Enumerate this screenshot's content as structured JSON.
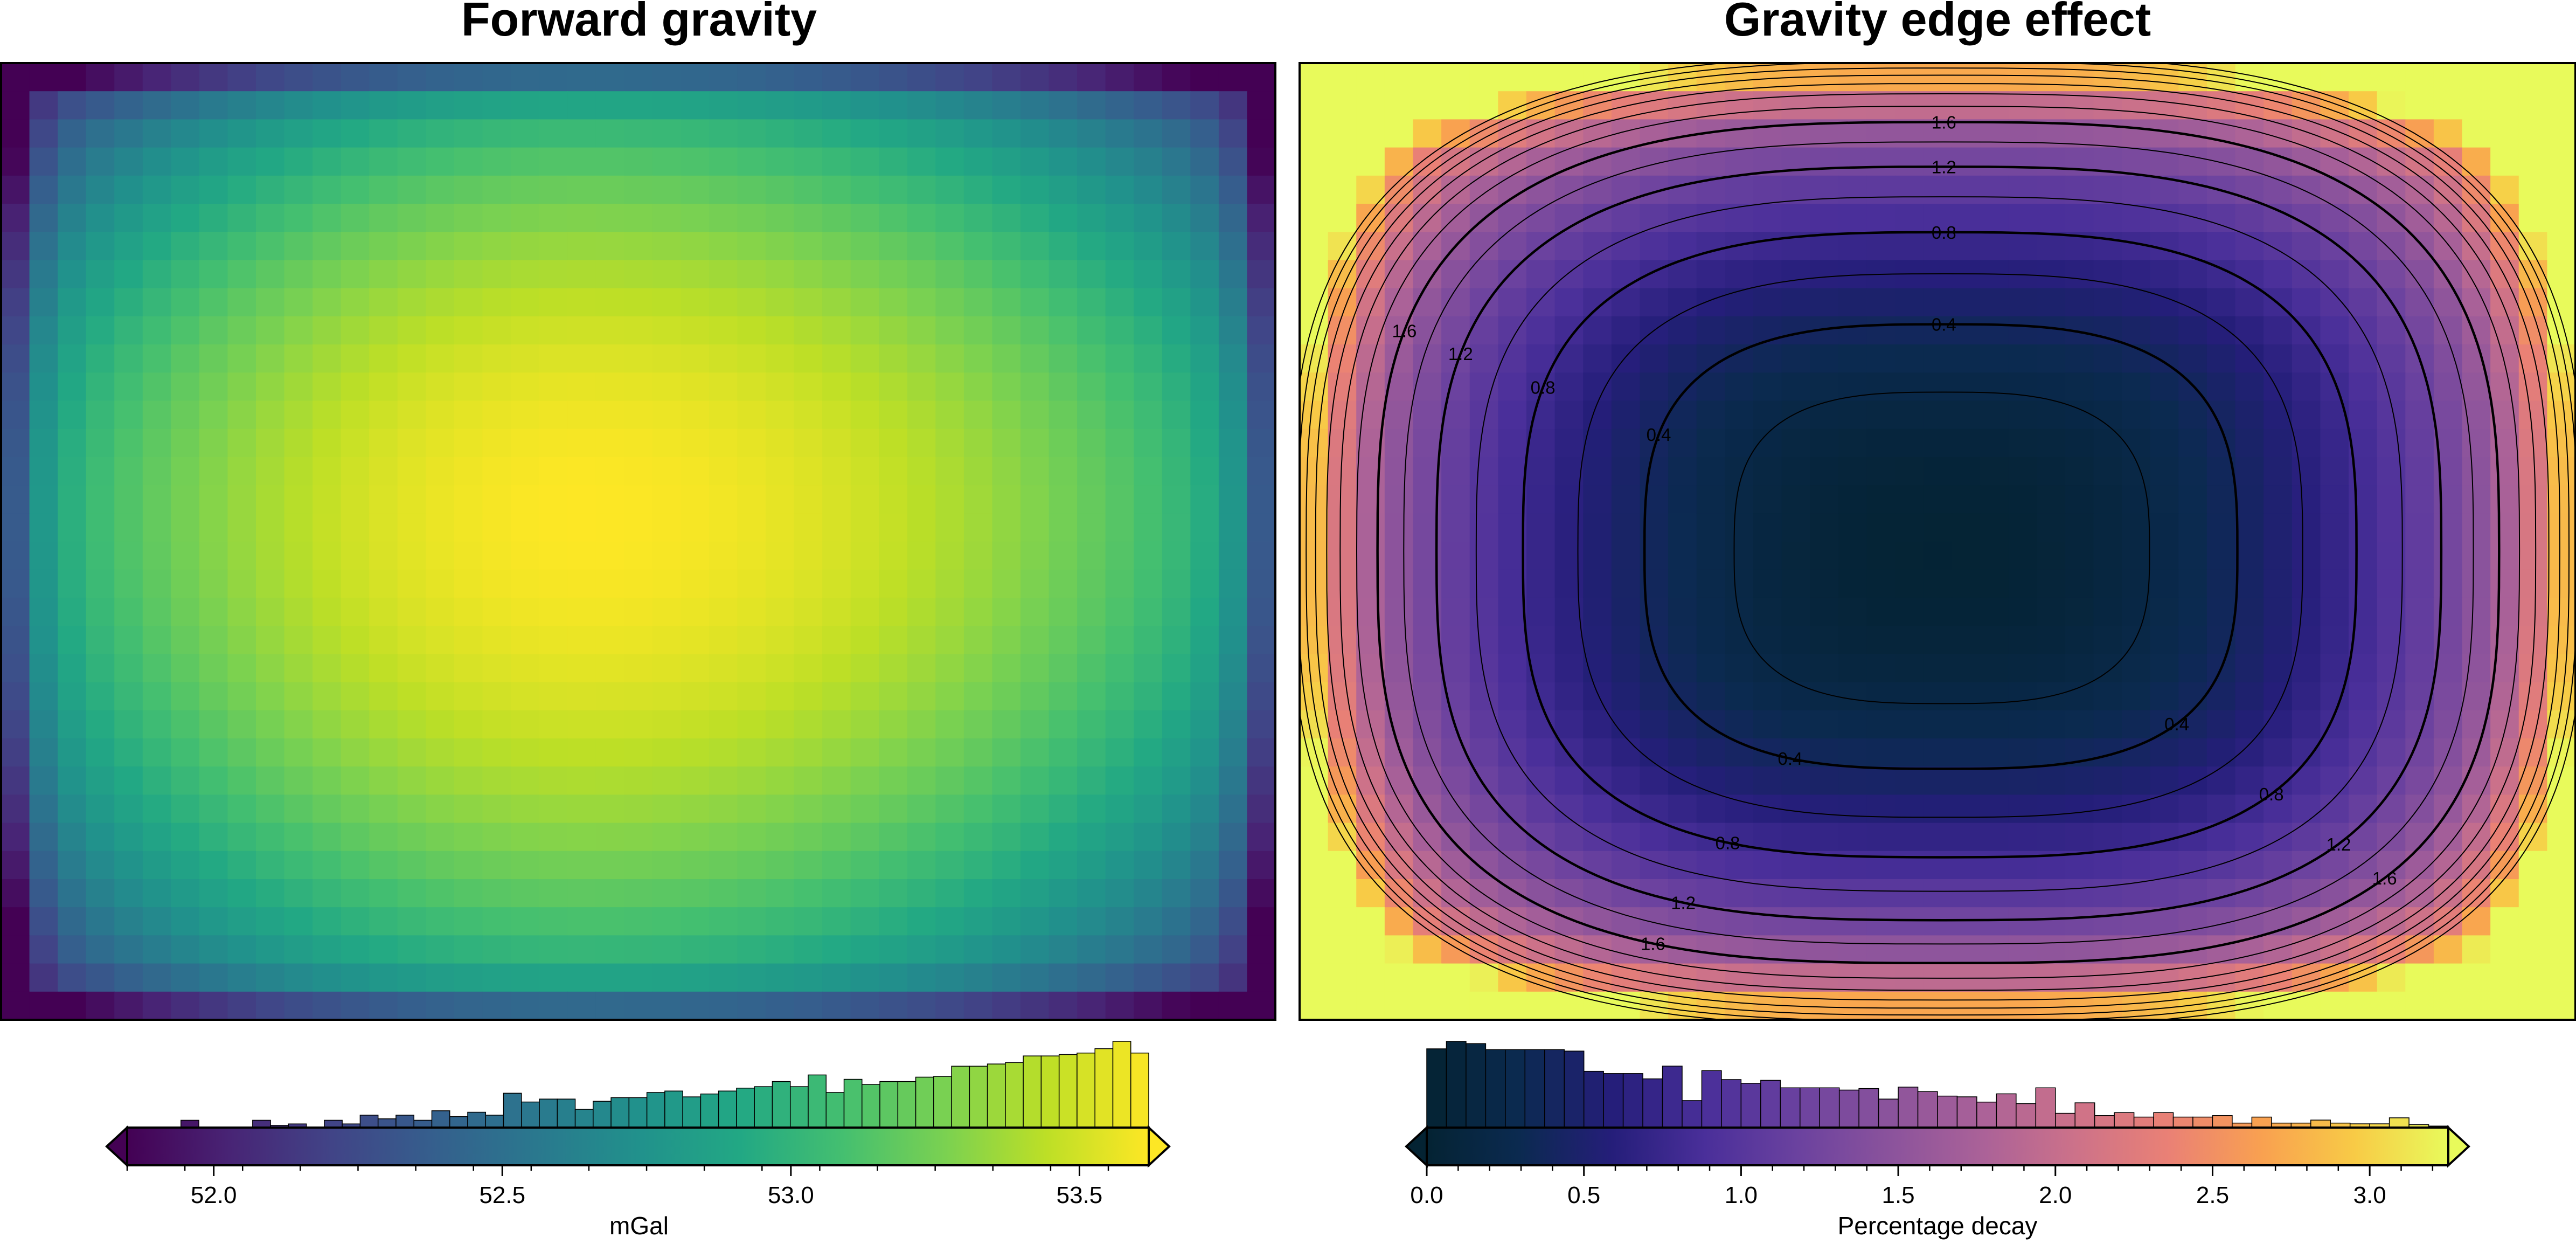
{
  "chart_data": [
    {
      "type": "heatmap",
      "title": "Forward gravity",
      "colormap": "viridis",
      "grid_shape": [
        34,
        45
      ],
      "value_range": [
        51.85,
        53.62
      ],
      "colorbar": {
        "label": "mGal",
        "range": [
          51.85,
          53.62
        ],
        "ticks": [
          52.0,
          52.5,
          53.0,
          53.5
        ],
        "tick_labels": [
          "52.0",
          "52.5",
          "53.0",
          "53.5"
        ],
        "extend": "both"
      },
      "histogram": [
        0,
        0,
        0,
        1,
        0,
        0,
        0,
        1,
        0.3,
        0.5,
        0,
        1,
        0.5,
        1.7,
        1.2,
        1.7,
        1,
        2.3,
        1.5,
        2.1,
        1.7,
        4.7,
        3.5,
        3.9,
        3.9,
        2.5,
        3.6,
        4.1,
        4.1,
        4.8,
        5.0,
        4.2,
        4.6,
        5.0,
        5.4,
        5.6,
        6.3,
        5.6,
        7.2,
        4.8,
        6.6,
        5.9,
        6.3,
        6.3,
        6.9,
        7.0,
        8.4,
        8.4,
        8.7,
        8.9,
        9.8,
        9.8,
        10.0,
        10.2,
        10.8,
        11.8,
        10.2
      ],
      "highest_region": "center-left"
    },
    {
      "type": "heatmap",
      "title": "Gravity edge effect",
      "colormap": "thermal",
      "grid_shape": [
        34,
        45
      ],
      "value_range": [
        0.0,
        3.25
      ],
      "contours": {
        "levels": [
          0.2,
          0.4,
          0.6,
          0.8,
          1.0,
          1.2,
          1.4,
          1.6,
          1.8,
          2.0,
          2.2,
          2.4,
          2.6,
          2.8,
          3.0
        ],
        "labeled_levels": [
          0.4,
          0.8,
          1.2,
          1.6
        ],
        "labels": [
          "0.4",
          "0.8",
          "1.2",
          "1.6"
        ]
      },
      "colorbar": {
        "label": "Percentage decay",
        "range": [
          0.0,
          3.25
        ],
        "ticks": [
          0.0,
          0.5,
          1.0,
          1.5,
          2.0,
          2.5,
          3.0
        ],
        "tick_labels": [
          "0.0",
          "0.5",
          "1.0",
          "1.5",
          "2.0",
          "2.5",
          "3.0"
        ],
        "extend": "both"
      },
      "histogram": [
        10.5,
        11.5,
        11.2,
        10.4,
        10.4,
        10.4,
        10.4,
        10.2,
        7.5,
        7.2,
        7.2,
        6.5,
        8.2,
        3.6,
        7.6,
        6.4,
        5.9,
        6.3,
        5.3,
        5.3,
        5.3,
        5.0,
        5.2,
        3.8,
        5.4,
        4.8,
        4.2,
        4.1,
        3.4,
        4.5,
        3.2,
        5.3,
        1.9,
        3.3,
        1.6,
        2.0,
        1.4,
        2.0,
        1.4,
        1.4,
        1.6,
        0.6,
        1.4,
        0.6,
        0.6,
        1.0,
        0.6,
        0.5,
        0.5,
        1.3,
        0.4,
        0.2
      ],
      "lowest_region": "center-right"
    }
  ]
}
